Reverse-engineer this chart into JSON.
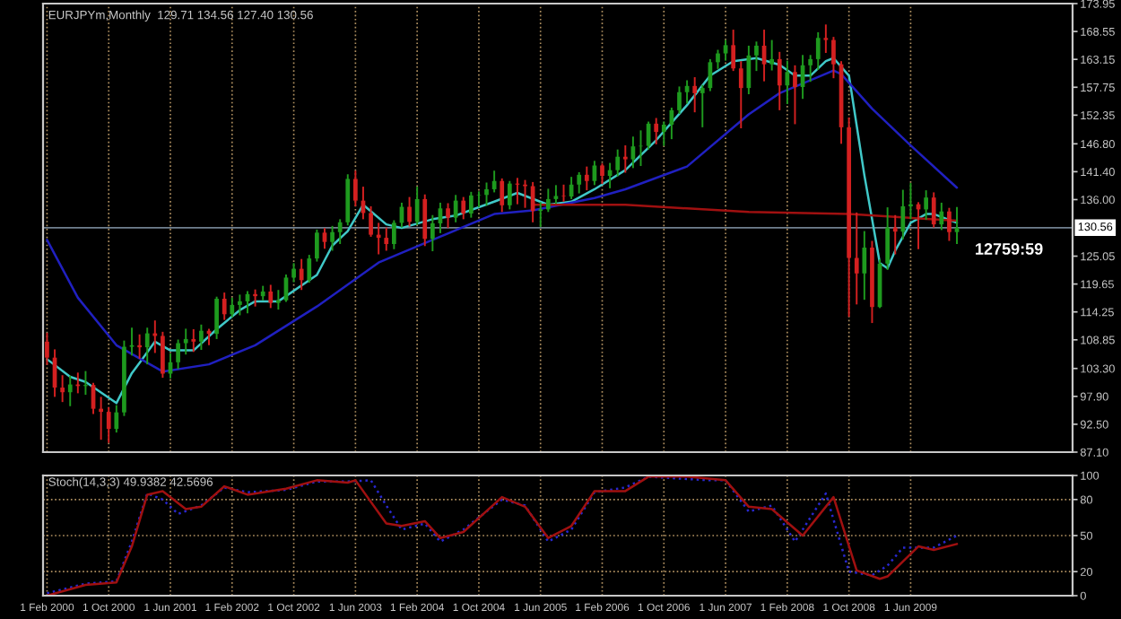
{
  "chart_data": [
    {
      "type": "candlestick",
      "title": "EURJPYm,Monthly  129.71 134.56 127.40 130.56",
      "tick_labels": "y",
      "grid": "x",
      "x": [
        "2000-02",
        "2000-03",
        "2000-04",
        "2000-05",
        "2000-06",
        "2000-07",
        "2000-08",
        "2000-09",
        "2000-10",
        "2000-11",
        "2000-12",
        "2001-01",
        "2001-02",
        "2001-03",
        "2001-04",
        "2001-05",
        "2001-06",
        "2001-07",
        "2001-08",
        "2001-09",
        "2001-10",
        "2001-11",
        "2001-12",
        "2002-01",
        "2002-02",
        "2002-03",
        "2002-04",
        "2002-05",
        "2002-06",
        "2002-07",
        "2002-08",
        "2002-09",
        "2002-10",
        "2002-11",
        "2002-12",
        "2003-01",
        "2003-02",
        "2003-03",
        "2003-04",
        "2003-05",
        "2003-06",
        "2003-07",
        "2003-08",
        "2003-09",
        "2003-10",
        "2003-11",
        "2003-12",
        "2004-01",
        "2004-02",
        "2004-03",
        "2004-04",
        "2004-05",
        "2004-06",
        "2004-07",
        "2004-08",
        "2004-09",
        "2004-10",
        "2004-11",
        "2004-12",
        "2005-01",
        "2005-02",
        "2005-03",
        "2005-04",
        "2005-05",
        "2005-06",
        "2005-07",
        "2005-08",
        "2005-09",
        "2005-10",
        "2005-11",
        "2005-12",
        "2006-01",
        "2006-02",
        "2006-03",
        "2006-04",
        "2006-05",
        "2006-06",
        "2006-07",
        "2006-08",
        "2006-09",
        "2006-10",
        "2006-11",
        "2006-12",
        "2007-01",
        "2007-02",
        "2007-03",
        "2007-04",
        "2007-05",
        "2007-06",
        "2007-07",
        "2007-08",
        "2007-09",
        "2007-10",
        "2007-11",
        "2007-12",
        "2008-01",
        "2008-02",
        "2008-03",
        "2008-04",
        "2008-05",
        "2008-06",
        "2008-07",
        "2008-08",
        "2008-09",
        "2008-10",
        "2008-11",
        "2008-12",
        "2009-01",
        "2009-02",
        "2009-03",
        "2009-04",
        "2009-05",
        "2009-06",
        "2009-07",
        "2009-08",
        "2009-09",
        "2009-10",
        "2009-11",
        "2009-12"
      ],
      "ohlc": [
        [
          108.5,
          110.2,
          104.0,
          105.4
        ],
        [
          105.4,
          107.0,
          97.8,
          99.6
        ],
        [
          99.6,
          102.0,
          96.8,
          98.7
        ],
        [
          98.7,
          101.9,
          96.0,
          100.2
        ],
        [
          100.2,
          102.5,
          98.5,
          99.9
        ],
        [
          99.9,
          102.8,
          98.2,
          100.1
        ],
        [
          100.1,
          100.5,
          94.5,
          95.5
        ],
        [
          95.5,
          97.8,
          89.5,
          94.9
        ],
        [
          94.9,
          95.8,
          88.9,
          91.6
        ],
        [
          91.6,
          96.2,
          90.9,
          94.8
        ],
        [
          94.8,
          108.7,
          94.1,
          107.5
        ],
        [
          107.5,
          111.2,
          105.8,
          107.8
        ],
        [
          107.8,
          109.9,
          105.2,
          107.4
        ],
        [
          107.4,
          111.2,
          104.1,
          110.1
        ],
        [
          110.1,
          112.6,
          106.3,
          109.6
        ],
        [
          109.6,
          110.4,
          101.5,
          102.3
        ],
        [
          102.3,
          106.2,
          101.4,
          104.5
        ],
        [
          104.5,
          108.9,
          103.2,
          108.2
        ],
        [
          108.2,
          111.0,
          106.0,
          109.0
        ],
        [
          109.0,
          110.9,
          106.5,
          108.5
        ],
        [
          108.5,
          111.8,
          106.9,
          110.6
        ],
        [
          110.6,
          111.0,
          107.8,
          110.0
        ],
        [
          110.0,
          117.2,
          109.0,
          116.8
        ],
        [
          116.8,
          118.0,
          112.7,
          113.8
        ],
        [
          113.8,
          117.0,
          113.2,
          115.6
        ],
        [
          115.6,
          117.6,
          113.6,
          116.3
        ],
        [
          116.3,
          118.3,
          114.0,
          117.7
        ],
        [
          117.7,
          118.6,
          115.3,
          117.3
        ],
        [
          117.3,
          119.3,
          116.5,
          118.2
        ],
        [
          118.2,
          119.5,
          115.0,
          116.0
        ],
        [
          116.0,
          118.5,
          114.7,
          116.5
        ],
        [
          116.5,
          121.5,
          116.2,
          120.9
        ],
        [
          120.9,
          123.7,
          120.0,
          122.6
        ],
        [
          122.6,
          124.5,
          118.5,
          120.4
        ],
        [
          120.4,
          125.3,
          119.9,
          124.6
        ],
        [
          124.6,
          130.2,
          124.0,
          129.6
        ],
        [
          129.6,
          130.5,
          126.5,
          127.8
        ],
        [
          127.8,
          130.9,
          126.1,
          129.7
        ],
        [
          129.7,
          132.2,
          127.4,
          131.6
        ],
        [
          131.6,
          140.9,
          131.0,
          140.0
        ],
        [
          140.0,
          141.6,
          134.7,
          135.8
        ],
        [
          135.8,
          138.5,
          132.2,
          133.4
        ],
        [
          133.4,
          134.7,
          128.8,
          129.2
        ],
        [
          129.2,
          131.5,
          125.4,
          128.6
        ],
        [
          128.6,
          130.6,
          126.1,
          127.4
        ],
        [
          127.4,
          132.0,
          126.4,
          131.5
        ],
        [
          131.5,
          135.4,
          130.6,
          134.6
        ],
        [
          134.6,
          136.5,
          130.8,
          131.7
        ],
        [
          131.7,
          138.5,
          131.1,
          136.1
        ],
        [
          136.1,
          137.0,
          127.0,
          128.4
        ],
        [
          128.4,
          133.0,
          126.0,
          131.4
        ],
        [
          131.4,
          135.4,
          129.5,
          134.3
        ],
        [
          134.3,
          135.3,
          130.5,
          132.5
        ],
        [
          132.5,
          136.9,
          131.6,
          135.8
        ],
        [
          135.8,
          136.5,
          132.2,
          133.3
        ],
        [
          133.3,
          137.5,
          132.5,
          136.8
        ],
        [
          136.8,
          137.6,
          134.5,
          136.9
        ],
        [
          136.9,
          139.3,
          134.8,
          138.0
        ],
        [
          138.0,
          141.6,
          137.4,
          139.6
        ],
        [
          139.6,
          140.1,
          133.6,
          134.9
        ],
        [
          134.9,
          139.6,
          134.1,
          139.1
        ],
        [
          139.1,
          140.2,
          135.1,
          138.9
        ],
        [
          138.9,
          139.8,
          134.4,
          138.6
        ],
        [
          138.6,
          139.4,
          131.6,
          133.8
        ],
        [
          133.8,
          135.5,
          130.7,
          134.1
        ],
        [
          134.1,
          138.1,
          133.6,
          136.1
        ],
        [
          136.1,
          138.8,
          135.2,
          136.7
        ],
        [
          136.7,
          138.9,
          135.6,
          136.6
        ],
        [
          136.6,
          140.4,
          136.1,
          138.9
        ],
        [
          138.9,
          141.3,
          137.2,
          140.8
        ],
        [
          140.8,
          142.4,
          137.8,
          139.6
        ],
        [
          139.6,
          143.5,
          138.8,
          142.6
        ],
        [
          142.6,
          143.0,
          139.0,
          140.6
        ],
        [
          140.6,
          143.1,
          138.2,
          141.7
        ],
        [
          141.7,
          145.7,
          140.5,
          144.3
        ],
        [
          144.3,
          146.5,
          141.2,
          143.8
        ],
        [
          143.8,
          148.2,
          142.1,
          146.3
        ],
        [
          146.3,
          149.4,
          142.5,
          146.4
        ],
        [
          146.4,
          151.1,
          145.7,
          150.7
        ],
        [
          150.7,
          151.8,
          146.7,
          149.1
        ],
        [
          149.1,
          151.1,
          146.4,
          150.5
        ],
        [
          150.5,
          153.8,
          147.7,
          153.3
        ],
        [
          153.3,
          157.9,
          152.6,
          156.8
        ],
        [
          156.8,
          159.1,
          154.6,
          158.0
        ],
        [
          158.0,
          159.7,
          152.9,
          156.6
        ],
        [
          156.6,
          158.2,
          150.0,
          157.6
        ],
        [
          157.6,
          163.2,
          157.0,
          162.6
        ],
        [
          162.6,
          165.0,
          161.3,
          164.3
        ],
        [
          164.3,
          166.9,
          162.9,
          165.9
        ],
        [
          165.9,
          168.9,
          160.9,
          161.4
        ],
        [
          161.4,
          162.8,
          149.8,
          157.6
        ],
        [
          157.6,
          165.8,
          156.4,
          163.9
        ],
        [
          163.9,
          166.6,
          160.9,
          165.8
        ],
        [
          165.8,
          168.9,
          158.9,
          162.2
        ],
        [
          162.2,
          166.9,
          161.0,
          163.2
        ],
        [
          163.2,
          164.6,
          153.3,
          158.1
        ],
        [
          158.1,
          162.9,
          154.5,
          160.7
        ],
        [
          160.7,
          162.0,
          150.6,
          157.8
        ],
        [
          157.8,
          164.0,
          155.5,
          162.0
        ],
        [
          162.0,
          164.0,
          158.8,
          163.2
        ],
        [
          163.2,
          168.4,
          161.1,
          167.3
        ],
        [
          167.3,
          169.9,
          164.4,
          166.9
        ],
        [
          166.9,
          167.5,
          159.5,
          162.2
        ],
        [
          162.2,
          162.8,
          146.8,
          150.0
        ],
        [
          150.0,
          151.9,
          113.3,
          124.7
        ],
        [
          124.7,
          133.5,
          115.7,
          121.7
        ],
        [
          121.7,
          129.9,
          116.6,
          126.7
        ],
        [
          126.7,
          128.0,
          112.1,
          115.2
        ],
        [
          115.2,
          124.4,
          115.0,
          123.6
        ],
        [
          123.6,
          134.5,
          122.4,
          130.6
        ],
        [
          130.6,
          133.0,
          125.4,
          129.8
        ],
        [
          129.8,
          137.9,
          128.3,
          134.7
        ],
        [
          134.7,
          139.2,
          132.2,
          135.1
        ],
        [
          135.1,
          135.5,
          126.4,
          134.1
        ],
        [
          134.1,
          137.8,
          132.1,
          136.4
        ],
        [
          136.4,
          137.4,
          130.6,
          131.2
        ],
        [
          131.2,
          135.4,
          130.1,
          133.7
        ],
        [
          133.7,
          134.4,
          128.0,
          129.71
        ],
        [
          129.71,
          134.56,
          127.4,
          130.56
        ]
      ],
      "series": [
        {
          "type": "line",
          "color": "#40c8c8",
          "x": [
            "2000-02",
            "2000-05",
            "2000-07",
            "2000-11",
            "2001-01",
            "2001-02",
            "2001-04",
            "2001-06",
            "2001-09",
            "2001-12",
            "2002-03",
            "2002-05",
            "2002-08",
            "2003-01",
            "2003-03",
            "2003-05",
            "2003-07",
            "2003-10",
            "2003-12",
            "2004-04",
            "2004-07",
            "2004-12",
            "2005-03",
            "2005-07",
            "2005-10",
            "2006-01",
            "2006-05",
            "2006-09",
            "2007-01",
            "2007-04",
            "2007-07",
            "2007-10",
            "2008-01",
            "2008-03",
            "2008-05",
            "2008-07",
            "2008-08",
            "2008-10",
            "2008-12",
            "2009-02",
            "2009-03",
            "2009-04",
            "2009-06",
            "2009-08",
            "2009-09",
            "2009-12"
          ],
          "values": [
            105.1,
            101.7,
            100.7,
            96.6,
            102.4,
            104.4,
            108.5,
            106.8,
            106.8,
            110.9,
            114.6,
            116.3,
            116.3,
            121.4,
            127.1,
            129.9,
            135.0,
            131.2,
            130.5,
            132.2,
            132.9,
            135.6,
            137.3,
            135.0,
            135.6,
            138.0,
            141.7,
            147.5,
            154.3,
            160.0,
            162.8,
            163.4,
            162.1,
            160.0,
            160.0,
            162.8,
            163.4,
            160.0,
            140.7,
            123.7,
            122.7,
            126.1,
            131.5,
            133.2,
            133.2,
            131.5
          ]
        },
        {
          "type": "line",
          "color": "#2020c0",
          "x": [
            "2000-02",
            "2000-06",
            "2000-11",
            "2001-05",
            "2001-11",
            "2002-05",
            "2003-01",
            "2003-09",
            "2004-04",
            "2004-12",
            "2005-05",
            "2006-01",
            "2006-05",
            "2007-01",
            "2007-09",
            "2008-01",
            "2008-08",
            "2008-09",
            "2009-01",
            "2009-06",
            "2009-12"
          ],
          "values": [
            128.2,
            117.0,
            107.8,
            102.7,
            104.1,
            107.8,
            115.3,
            123.8,
            128.2,
            133.2,
            133.9,
            136.3,
            138.0,
            142.4,
            152.5,
            156.6,
            161.0,
            160.3,
            153.6,
            146.5,
            138.3
          ]
        },
        {
          "type": "line",
          "color": "#a01010",
          "x": [
            "2005-05",
            "2006-05",
            "2007-09",
            "2008-10",
            "2009-12"
          ],
          "values": [
            135.0,
            135.0,
            133.6,
            133.2,
            131.9
          ]
        }
      ],
      "ref_lines": [
        {
          "axis": "y",
          "value": 130.56,
          "label": "130.56",
          "color": "#708090"
        }
      ],
      "annotations": [
        "12759:59"
      ],
      "xlim": [
        "2000-01-16",
        "2011-03"
      ],
      "xticks": [
        {
          "value": "2000-02",
          "label": null
        },
        {
          "value": "2000-10",
          "label": null
        },
        {
          "value": "2001-06",
          "label": null
        },
        {
          "value": "2002-02",
          "label": null
        },
        {
          "value": "2002-10",
          "label": null
        },
        {
          "value": "2003-06",
          "label": null
        },
        {
          "value": "2004-02",
          "label": null
        },
        {
          "value": "2004-10",
          "label": null
        },
        {
          "value": "2005-06",
          "label": null
        },
        {
          "value": "2006-02",
          "label": null
        },
        {
          "value": "2006-10",
          "label": null
        },
        {
          "value": "2007-06",
          "label": null
        },
        {
          "value": "2008-02",
          "label": null
        },
        {
          "value": "2008-10",
          "label": null
        },
        {
          "value": "2009-06",
          "label": null
        }
      ],
      "ylim": [
        87.1,
        173.95
      ],
      "yticks": [
        {
          "value": 87.1,
          "label": "87.10"
        },
        {
          "value": 92.5,
          "label": "92.50"
        },
        {
          "value": 97.9,
          "label": "97.90"
        },
        {
          "value": 103.3,
          "label": "103.30"
        },
        108.85,
        114.25,
        119.65,
        125.05,
        {
          "value": 136.0,
          "label": "136.00"
        },
        {
          "value": 141.4,
          "label": "141.40"
        },
        {
          "value": 146.8,
          "label": "146.80"
        },
        152.35,
        157.75,
        163.15,
        168.55,
        173.95
      ]
    },
    {
      "type": "line",
      "title": "Stoch(14,3,3) 49.9382 42.5696",
      "grid": true,
      "series": [
        {
          "color": "#2828d0",
          "line_style": "dotted",
          "x": [
            "2000-02",
            "2000-07",
            "2000-11",
            "2001-01",
            "2001-03",
            "2001-05",
            "2001-07",
            "2001-10",
            "2002-01",
            "2002-04",
            "2002-09",
            "2003-01",
            "2003-05",
            "2003-08",
            "2003-10",
            "2003-12",
            "2004-03",
            "2004-05",
            "2004-08",
            "2005-01",
            "2005-04",
            "2005-07",
            "2005-10",
            "2006-01",
            "2006-05",
            "2006-08",
            "2007-01",
            "2007-04",
            "2007-06",
            "2007-09",
            "2007-12",
            "2008-03",
            "2008-07",
            "2008-10",
            "2009-01",
            "2009-03",
            "2009-05",
            "2009-09",
            "2009-12"
          ],
          "values": [
            2,
            10,
            12,
            45,
            85,
            80,
            68,
            75,
            90,
            86,
            88,
            95,
            95,
            96,
            75,
            55,
            60,
            45,
            55,
            80,
            75,
            45,
            55,
            86,
            90,
            99,
            97,
            96,
            96,
            70,
            75,
            45,
            85,
            20,
            17,
            25,
            40,
            40,
            50
          ]
        },
        {
          "color": "#a01010",
          "x": [
            "2000-02",
            "2000-07",
            "2000-11",
            "2001-01",
            "2001-03",
            "2001-05",
            "2001-08",
            "2001-10",
            "2002-01",
            "2002-04",
            "2002-09",
            "2003-01",
            "2003-05",
            "2003-06",
            "2003-10",
            "2003-12",
            "2004-03",
            "2004-05",
            "2004-08",
            "2005-01",
            "2005-04",
            "2005-07",
            "2005-10",
            "2006-01",
            "2006-05",
            "2006-08",
            "2007-01",
            "2007-06",
            "2007-09",
            "2007-12",
            "2008-04",
            "2008-08",
            "2008-11",
            "2009-02",
            "2009-03",
            "2009-07",
            "2009-09",
            "2009-12"
          ],
          "values": [
            0,
            9,
            11,
            41,
            84,
            87,
            72,
            74,
            91,
            84,
            89,
            96,
            94,
            96,
            60,
            58,
            62,
            48,
            53,
            82,
            74,
            48,
            58,
            87,
            87,
            99,
            99,
            96,
            74,
            72,
            50,
            82,
            21,
            14,
            16,
            41,
            38,
            43
          ]
        }
      ],
      "xlim": [
        "2000-01-16",
        "2011-03"
      ],
      "xticks": [
        {
          "value": "2000-02",
          "label": "1 Feb 2000"
        },
        {
          "value": "2000-10",
          "label": "1 Oct 2000"
        },
        {
          "value": "2001-06",
          "label": "1 Jun 2001"
        },
        {
          "value": "2002-02",
          "label": "1 Feb 2002"
        },
        {
          "value": "2002-10",
          "label": "1 Oct 2002"
        },
        {
          "value": "2003-06",
          "label": "1 Jun 2003"
        },
        {
          "value": "2004-02",
          "label": "1 Feb 2004"
        },
        {
          "value": "2004-10",
          "label": "1 Oct 2004"
        },
        {
          "value": "2005-06",
          "label": "1 Jun 2005"
        },
        {
          "value": "2006-02",
          "label": "1 Feb 2006"
        },
        {
          "value": "2006-10",
          "label": "1 Oct 2006"
        },
        {
          "value": "2007-06",
          "label": "1 Jun 2007"
        },
        {
          "value": "2008-02",
          "label": "1 Feb 2008"
        },
        {
          "value": "2008-10",
          "label": "1 Oct 2008"
        },
        {
          "value": "2009-06",
          "label": "1 Jun 2009"
        }
      ],
      "ylim": [
        0,
        100
      ],
      "yticks": [
        0,
        20,
        50,
        80,
        100
      ]
    }
  ]
}
